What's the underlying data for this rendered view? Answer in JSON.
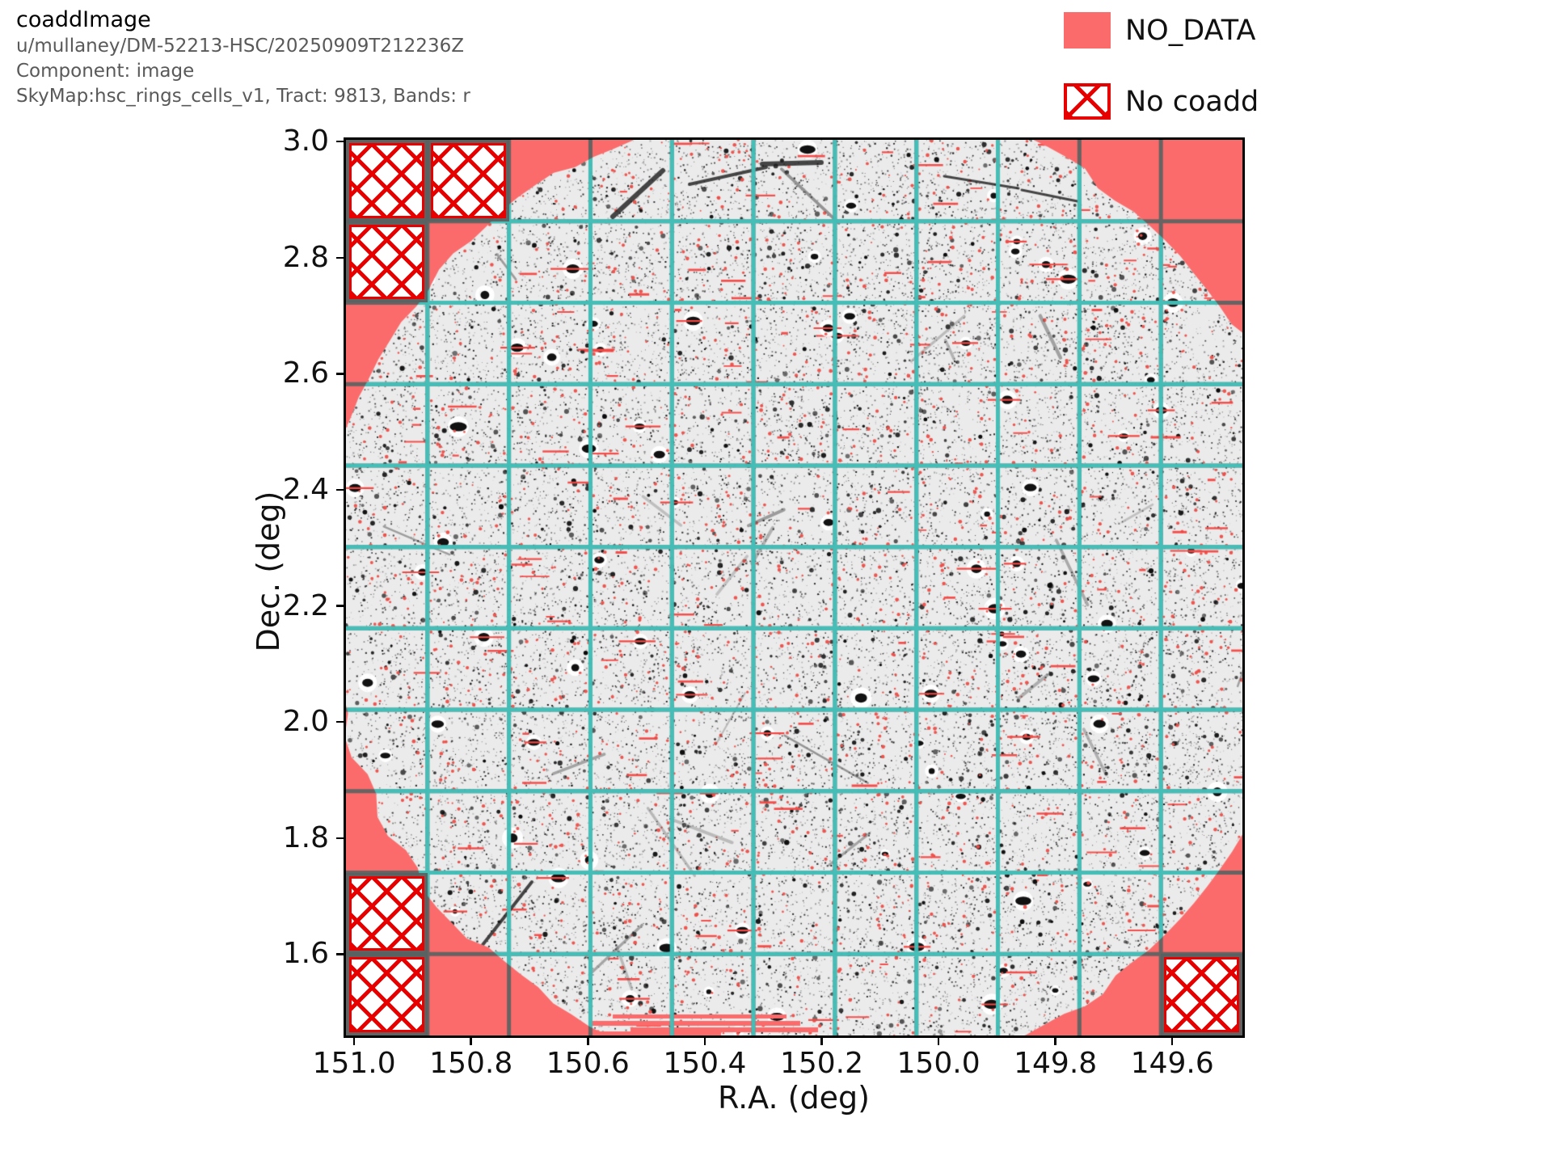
{
  "header": {
    "title": "coaddImage",
    "subtitle_lines": [
      "u/mullaney/DM-52213-HSC/20250909T212236Z",
      "Component: image",
      "SkyMap:hsc_rings_cells_v1, Tract: 9813, Bands: r"
    ]
  },
  "legend": {
    "items": [
      {
        "label": "NO_DATA",
        "swatch": "solid",
        "color": "#fc6b6b"
      },
      {
        "label": "No coadd",
        "swatch": "crosshatch",
        "color": "#e60000"
      }
    ]
  },
  "chart_data": {
    "type": "heatmap",
    "description": "Coadded r-band sky image of tract 9813 (grayscale noise with detected sources). Circular survey footprint; regions with no data are pink; patches with no coadd are red-crosshatched. Cyan grid shows the 11x11 patch boundaries.",
    "xlabel": "R.A. (deg)",
    "ylabel": "Dec. (deg)",
    "x_ticks": [
      151.0,
      150.8,
      150.6,
      150.4,
      150.2,
      150.0,
      149.8,
      149.6
    ],
    "y_ticks": [
      3.0,
      2.8,
      2.6,
      2.4,
      2.2,
      2.0,
      1.8,
      1.6
    ],
    "x_range": [
      151.014,
      149.48
    ],
    "y_range": [
      1.46,
      3.003
    ],
    "x_axis_inverted": true,
    "grid": {
      "rows": 11,
      "cols": 11,
      "on": true,
      "color_inside_data": "#40cbc4",
      "color_outside_data": "#556362"
    },
    "no_data_color": "#fc6b6b",
    "no_coadd_color": "#e60000",
    "image_background": "#ebebeb",
    "no_coadd_patches_rowcol": [
      [
        0,
        0
      ],
      [
        0,
        1
      ],
      [
        1,
        0
      ],
      [
        9,
        0
      ],
      [
        10,
        0
      ],
      [
        10,
        10
      ]
    ],
    "footprint": {
      "shape": "circle-clipped-to-axes",
      "ragged_edge": true
    },
    "legend_position": "upper right (outside axes)"
  }
}
